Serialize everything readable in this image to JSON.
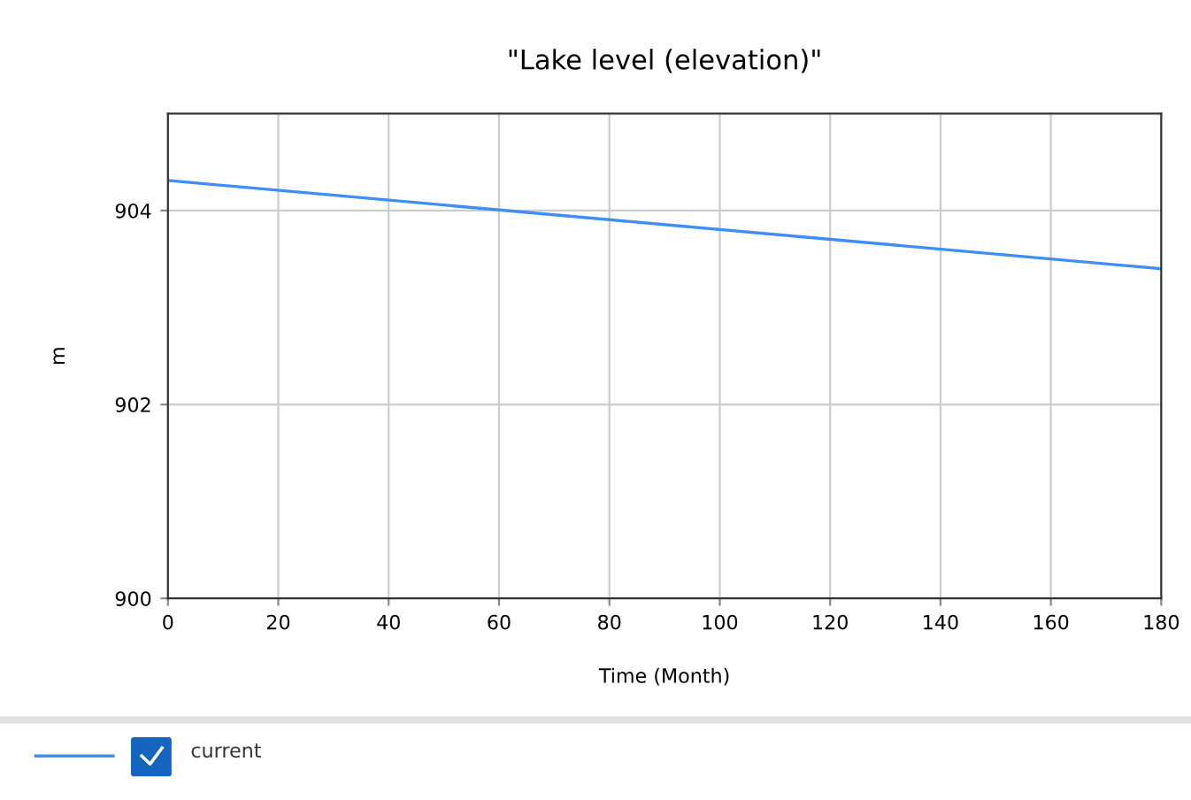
{
  "chart_data": {
    "type": "line",
    "title": "\"Lake level (elevation)\"",
    "xlabel": "Time (Month)",
    "ylabel": "m",
    "x": [
      0,
      180
    ],
    "series": [
      {
        "name": "current",
        "color": "#3d8ef5",
        "values": [
          904.31,
          903.4
        ]
      }
    ],
    "xlim": [
      0,
      180
    ],
    "xticks": [
      0,
      20,
      40,
      60,
      80,
      100,
      120,
      140,
      160,
      180
    ],
    "ylim": [
      900,
      905
    ],
    "yticks": [
      900,
      902,
      904
    ],
    "grid": true,
    "legend": "bottom",
    "marker": "none",
    "line_style": "solid"
  }
}
